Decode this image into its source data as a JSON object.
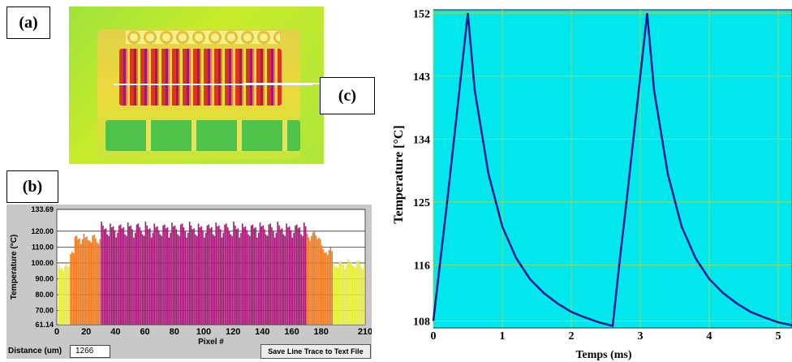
{
  "panels": {
    "a_label": "(a)",
    "b_label": "(b)",
    "c_label": "(c)"
  },
  "line_trace": {
    "distance_label": "Distance (um)",
    "distance_value": "1266",
    "save_button": "Save Line Trace to Text File"
  },
  "colors": {
    "bar_magenta": "#a81a78",
    "bar_orange": "#f07a20",
    "bar_yellow": "#e6ec3a",
    "plot_bg_c": "#00e8ee",
    "trace_c": "#1a1a8a",
    "grid_c": "#9ad85a"
  },
  "chart_data": [
    {
      "type": "bar",
      "title": "",
      "xlabel": "Pixel #",
      "ylabel": "Temperature (°C)",
      "xlim": [
        0,
        210
      ],
      "ylim": [
        61.14,
        133.69
      ],
      "x_ticks": [
        0,
        20,
        40,
        60,
        80,
        100,
        120,
        140,
        160,
        180,
        210
      ],
      "y_ticks": [
        "61.14",
        "70.00",
        "80.00",
        "90.00",
        "100.00",
        "110.00",
        "120.00",
        "133.69"
      ],
      "grid": true,
      "segments": [
        {
          "from": 1,
          "to": 9,
          "peak": 101,
          "base": 95,
          "color": "yellow"
        },
        {
          "from": 9,
          "to": 12,
          "peak": 111,
          "base": 105,
          "color": "orange"
        },
        {
          "from": 12,
          "to": 30,
          "peak": 119,
          "base": 112,
          "color": "orange"
        },
        {
          "from": 30,
          "to": 170,
          "peak": 126,
          "base": 116,
          "color": "magenta"
        },
        {
          "from": 170,
          "to": 180,
          "peak": 121,
          "base": 114,
          "color": "orange"
        },
        {
          "from": 180,
          "to": 188,
          "peak": 111,
          "base": 105,
          "color": "orange"
        },
        {
          "from": 188,
          "to": 210,
          "peak": 103,
          "base": 96,
          "color": "yellow"
        }
      ]
    },
    {
      "type": "line",
      "title": "",
      "xlabel": "Temps (ms)",
      "ylabel": "Temperature [°C]",
      "xlim": [
        0,
        5.2
      ],
      "ylim": [
        107,
        152.5
      ],
      "x_ticks": [
        0,
        1,
        2,
        3,
        4,
        5
      ],
      "y_ticks": [
        108,
        116,
        125,
        134,
        143,
        152
      ],
      "grid": true,
      "series": [
        {
          "x": [
            0,
            0.1,
            0.2,
            0.3,
            0.4,
            0.5,
            0.6,
            0.8,
            1.0,
            1.2,
            1.4,
            1.6,
            1.8,
            2.0,
            2.2,
            2.4,
            2.6,
            2.7,
            2.8,
            2.9,
            3.0,
            3.1,
            3.2,
            3.4,
            3.6,
            3.8,
            4.0,
            4.2,
            4.4,
            4.6,
            4.8,
            5.0,
            5.2
          ],
          "y": [
            108,
            116.5,
            125,
            134,
            143,
            152,
            141,
            129,
            121.5,
            117,
            114,
            112,
            110.5,
            109.3,
            108.5,
            107.8,
            107.3,
            116.5,
            125,
            134,
            143,
            152,
            141,
            129,
            121.5,
            117,
            114,
            112,
            110.5,
            109.3,
            108.5,
            107.8,
            107.4
          ]
        }
      ]
    }
  ]
}
